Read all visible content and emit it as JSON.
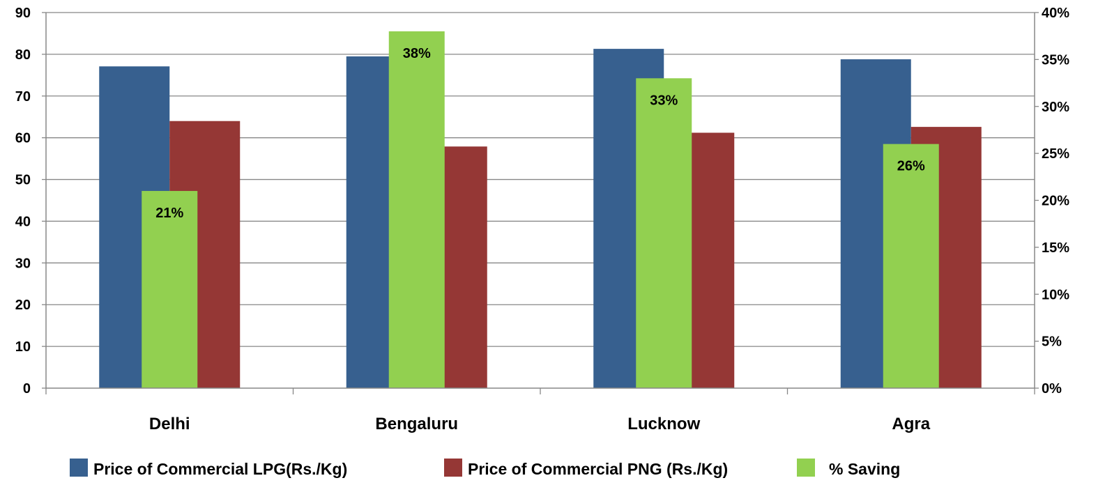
{
  "chart_data": {
    "type": "bar",
    "categories": [
      "Delhi",
      "Bengaluru",
      "Lucknow",
      "Agra"
    ],
    "series": [
      {
        "name": "Price of Commercial LPG(Rs./Kg)",
        "axis": "left",
        "values": [
          77.1,
          79.5,
          81.3,
          78.8
        ],
        "color": "#37608F"
      },
      {
        "name": "% Saving",
        "axis": "right",
        "values": [
          0.21,
          0.38,
          0.33,
          0.26
        ],
        "labels": [
          "21%",
          "38%",
          "33%",
          "26%"
        ],
        "color": "#92D050"
      },
      {
        "name": "Price of Commercial PNG (Rs./Kg)",
        "axis": "left",
        "values": [
          64.0,
          57.9,
          61.2,
          62.6
        ],
        "color": "#953735"
      }
    ],
    "y_left": {
      "ylim": [
        0,
        90
      ],
      "ticks": [
        "0",
        "10",
        "20",
        "30",
        "40",
        "50",
        "60",
        "70",
        "80",
        "90"
      ]
    },
    "y_right": {
      "ylim": [
        0,
        0.4
      ],
      "ticks": [
        "0%",
        "5%",
        "10%",
        "15%",
        "20%",
        "25%",
        "30%",
        "35%",
        "40%"
      ]
    },
    "grid": true,
    "legend": {
      "position": "bottom",
      "entries": [
        "Price of Commercial LPG(Rs./Kg)",
        "Price of Commercial PNG (Rs./Kg)",
        "% Saving"
      ]
    }
  }
}
